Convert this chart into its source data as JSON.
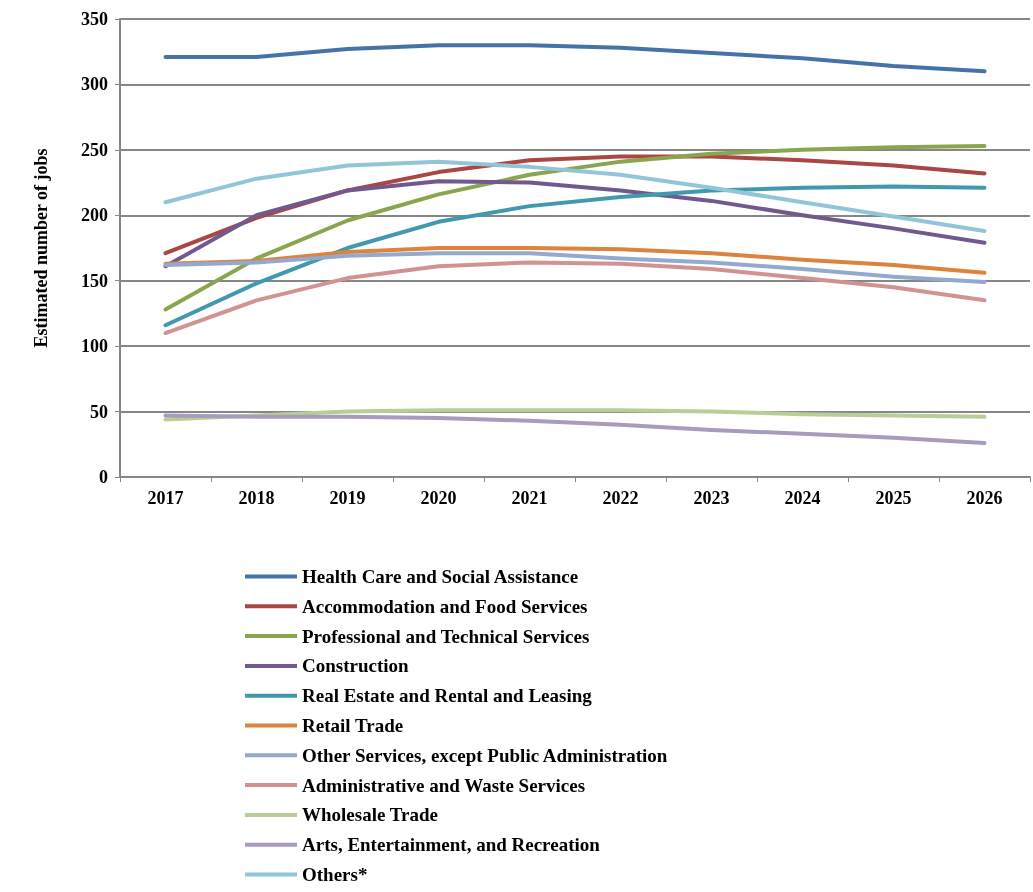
{
  "chart_data": {
    "type": "line",
    "ylabel": "Estimated number of jobs",
    "categories": [
      "2017",
      "2018",
      "2019",
      "2020",
      "2021",
      "2022",
      "2023",
      "2024",
      "2025",
      "2026"
    ],
    "ylim": [
      0,
      350
    ],
    "yticks": [
      0,
      50,
      100,
      150,
      200,
      250,
      300,
      350
    ],
    "grid": "y",
    "legend": "bottom",
    "marker": "none",
    "line_style": "solid",
    "series": [
      {
        "name": "Health Care and Social Assistance",
        "color": "#4572a7",
        "values": [
          321,
          321,
          327,
          330,
          330,
          328,
          324,
          320,
          314,
          310
        ]
      },
      {
        "name": "Accommodation and Food Services",
        "color": "#aa4643",
        "values": [
          171,
          198,
          219,
          233,
          242,
          245,
          245,
          242,
          238,
          232
        ]
      },
      {
        "name": "Professional and Technical Services",
        "color": "#89a54e",
        "values": [
          128,
          167,
          196,
          216,
          231,
          241,
          247,
          250,
          252,
          253
        ]
      },
      {
        "name": "Construction",
        "color": "#71588f",
        "values": [
          161,
          200,
          219,
          226,
          225,
          219,
          211,
          200,
          190,
          179
        ]
      },
      {
        "name": "Real Estate and Rental and Leasing",
        "color": "#4198af",
        "values": [
          116,
          148,
          175,
          195,
          207,
          214,
          219,
          221,
          222,
          221
        ]
      },
      {
        "name": "Retail Trade",
        "color": "#db843d",
        "values": [
          163,
          165,
          172,
          175,
          175,
          174,
          171,
          166,
          162,
          156
        ]
      },
      {
        "name": "Other Services, except Public Administration",
        "color": "#93a9cf",
        "values": [
          162,
          164,
          169,
          171,
          171,
          167,
          164,
          159,
          153,
          149
        ]
      },
      {
        "name": "Administrative and Waste Services",
        "color": "#d19392",
        "values": [
          110,
          135,
          152,
          161,
          164,
          163,
          159,
          152,
          145,
          135
        ]
      },
      {
        "name": "Wholesale Trade",
        "color": "#b9cd96",
        "values": [
          44,
          47,
          50,
          51,
          51,
          51,
          50,
          48,
          47,
          46
        ]
      },
      {
        "name": "Arts, Entertainment, and Recreation",
        "color": "#a99bbd",
        "values": [
          47,
          46,
          46,
          45,
          43,
          40,
          36,
          33,
          30,
          26
        ]
      },
      {
        "name": "Others*",
        "color": "#92c5d8",
        "values": [
          210,
          228,
          238,
          241,
          237,
          231,
          221,
          210,
          199,
          188
        ]
      }
    ]
  }
}
